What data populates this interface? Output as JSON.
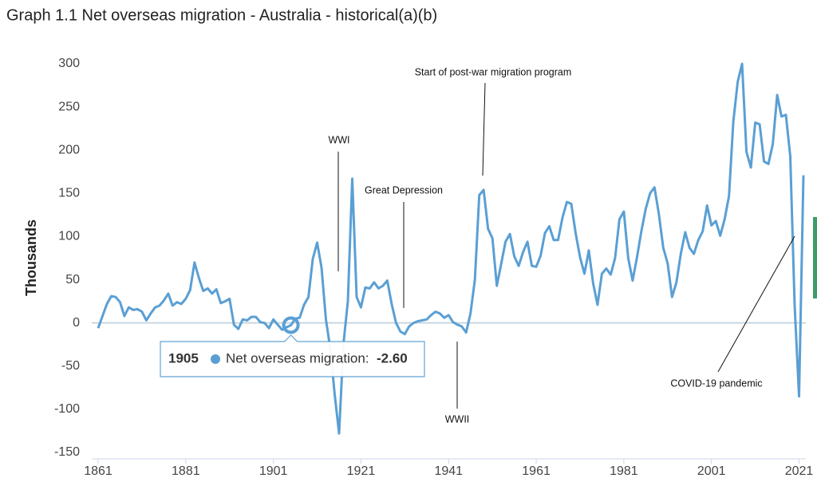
{
  "chart_data": {
    "type": "line",
    "title": "Graph 1.1 Net overseas migration - Australia - historical(a)(b)",
    "ylabel": "Thousands",
    "color": "#5a9fd4",
    "x": [
      1861,
      1862,
      1863,
      1864,
      1865,
      1866,
      1867,
      1868,
      1869,
      1870,
      1871,
      1872,
      1873,
      1874,
      1875,
      1876,
      1877,
      1878,
      1879,
      1880,
      1881,
      1882,
      1883,
      1884,
      1885,
      1886,
      1887,
      1888,
      1889,
      1890,
      1891,
      1892,
      1893,
      1894,
      1895,
      1896,
      1897,
      1898,
      1899,
      1900,
      1901,
      1902,
      1903,
      1904,
      1905,
      1906,
      1907,
      1908,
      1909,
      1910,
      1911,
      1912,
      1913,
      1914,
      1915,
      1916,
      1917,
      1918,
      1919,
      1920,
      1921,
      1922,
      1923,
      1924,
      1925,
      1926,
      1927,
      1928,
      1929,
      1930,
      1931,
      1932,
      1933,
      1934,
      1935,
      1936,
      1937,
      1938,
      1939,
      1940,
      1941,
      1942,
      1943,
      1944,
      1945,
      1946,
      1947,
      1948,
      1949,
      1950,
      1951,
      1952,
      1953,
      1954,
      1955,
      1956,
      1957,
      1958,
      1959,
      1960,
      1961,
      1962,
      1963,
      1964,
      1965,
      1966,
      1967,
      1968,
      1969,
      1970,
      1971,
      1972,
      1973,
      1974,
      1975,
      1976,
      1977,
      1978,
      1979,
      1980,
      1981,
      1982,
      1983,
      1984,
      1985,
      1986,
      1987,
      1988,
      1989,
      1990,
      1991,
      1992,
      1993,
      1994,
      1995,
      1996,
      1997,
      1998,
      1999,
      2000,
      2001,
      2002,
      2003,
      2004,
      2005,
      2006,
      2007,
      2008,
      2009,
      2010,
      2011,
      2012,
      2013,
      2014,
      2015,
      2016,
      2017,
      2018,
      2019,
      2020,
      2021,
      2022
    ],
    "values": [
      -6,
      8,
      22,
      31,
      30,
      24,
      8,
      18,
      15,
      16,
      13,
      3,
      11,
      18,
      20,
      26,
      34,
      20,
      24,
      22,
      28,
      38,
      70,
      52,
      37,
      40,
      34,
      39,
      23,
      25,
      28,
      -2,
      -7,
      4,
      3,
      7,
      7,
      1,
      0,
      -6,
      4,
      -2,
      -8,
      -5,
      -2.6,
      5,
      6,
      21,
      30,
      74,
      93,
      64,
      4,
      -30,
      -83,
      -128,
      -24,
      25,
      167,
      30,
      18,
      41,
      40,
      47,
      40,
      43,
      49,
      22,
      0,
      -10,
      -13,
      -4,
      0,
      2,
      3,
      4,
      9,
      13,
      11,
      6,
      9,
      1,
      -2,
      -4,
      -11,
      11,
      50,
      148,
      154,
      109,
      98,
      43,
      68,
      94,
      103,
      77,
      66,
      82,
      94,
      66,
      65,
      78,
      104,
      112,
      96,
      96,
      122,
      140,
      138,
      104,
      76,
      57,
      84,
      46,
      21,
      57,
      63,
      56,
      75,
      120,
      129,
      75,
      49,
      76,
      106,
      132,
      150,
      157,
      126,
      87,
      69,
      30,
      47,
      80,
      105,
      87,
      80,
      96,
      106,
      136,
      113,
      118,
      101,
      120,
      147,
      233,
      279,
      300,
      198,
      180,
      232,
      230,
      187,
      184,
      207,
      264,
      239,
      241,
      193,
      20,
      -85,
      171
    ],
    "xlim": [
      1861,
      2022
    ],
    "xticks": [
      1861,
      1881,
      1901,
      1921,
      1941,
      1961,
      1981,
      2001,
      2021
    ],
    "ylim": [
      -150,
      300
    ],
    "yticks": [
      -150,
      -100,
      -50,
      0,
      50,
      100,
      150,
      200,
      250,
      300
    ],
    "annotations": [
      "WWI",
      "Great Depression",
      "Start of post-war migration program",
      "WWII",
      "COVID-19 pandemic"
    ],
    "tooltip": {
      "x": 1905,
      "label": "Net overseas migration:",
      "value_label": "-2.60"
    }
  }
}
